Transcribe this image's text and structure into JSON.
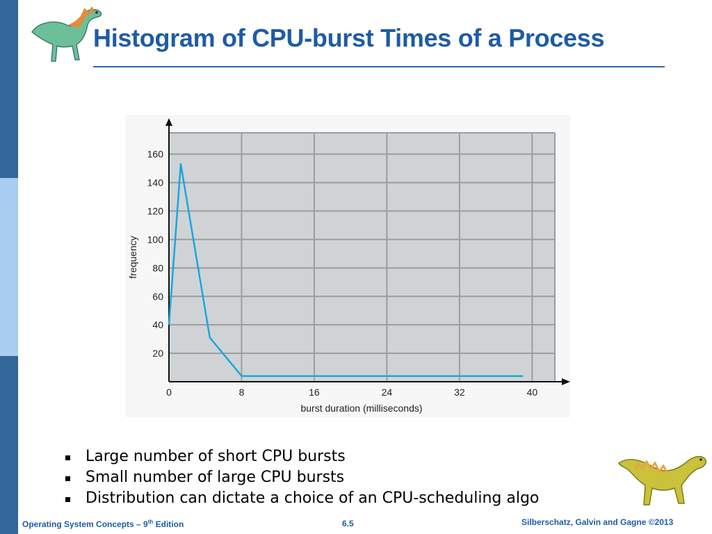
{
  "slide": {
    "title": "Histogram of CPU-burst Times of a Process",
    "bullets": [
      "Large number of short CPU bursts",
      "Small number of large CPU bursts",
      "Distribution can dictate a choice of an CPU-scheduling algo"
    ]
  },
  "footer": {
    "left_prefix": "Operating System Concepts – 9",
    "left_sup": "th",
    "left_suffix": " Edition",
    "center": "6.5",
    "right": "Silberschatz, Galvin and Gagne ©2013"
  },
  "colors": {
    "title": "#1f5ba6",
    "plot_bg": "#d0d3d5",
    "grid": "#9a9c9e",
    "line": "#1aa6df"
  },
  "icons": {
    "top": "dinosaur-icon",
    "bottom": "dinosaur-icon"
  },
  "chart_data": {
    "type": "line",
    "title": "",
    "xlabel": "burst duration (milliseconds)",
    "ylabel": "frequency",
    "xlim": [
      0,
      42.5
    ],
    "ylim": [
      0,
      175
    ],
    "xticks": [
      0,
      8,
      16,
      24,
      32,
      40
    ],
    "yticks": [
      20,
      40,
      60,
      80,
      100,
      120,
      140,
      160
    ],
    "grid": true,
    "series": [
      {
        "x": [
          0,
          1.3,
          4.5,
          8,
          39
        ],
        "y": [
          40,
          153,
          31,
          4,
          4
        ]
      }
    ]
  }
}
